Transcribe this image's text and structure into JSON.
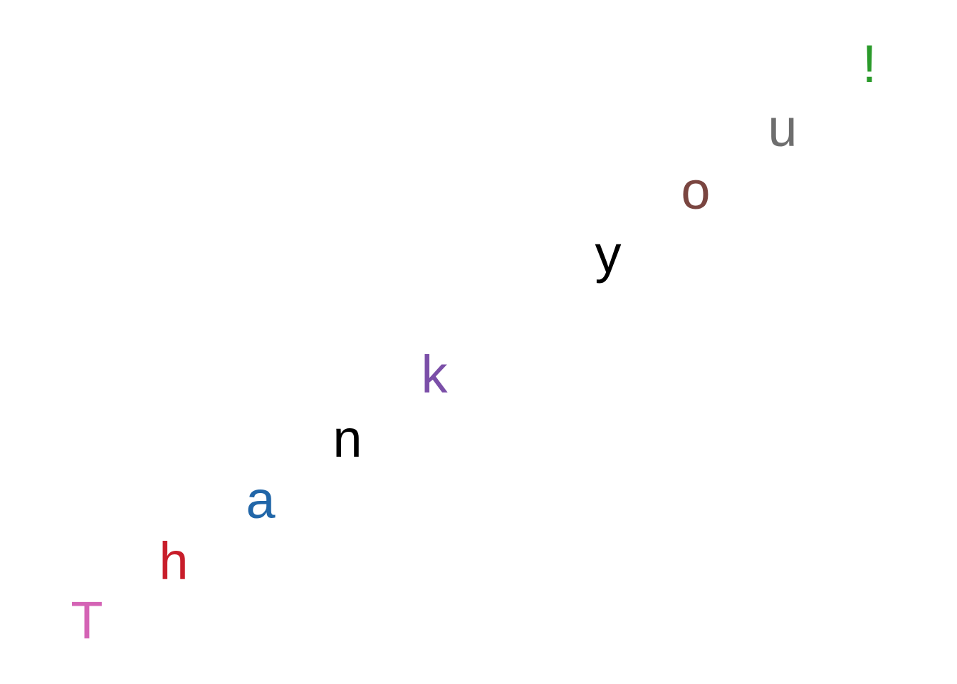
{
  "letters": [
    {
      "char": "T",
      "color": "#d463b5"
    },
    {
      "char": "h",
      "color": "#c81d2a"
    },
    {
      "char": "a",
      "color": "#2166a8"
    },
    {
      "char": "n",
      "color": "#000000"
    },
    {
      "char": "k",
      "color": "#7b4fa8"
    },
    {
      "char": "y",
      "color": "#000000"
    },
    {
      "char": "o",
      "color": "#7a4540"
    },
    {
      "char": "u",
      "color": "#6e6e6e"
    },
    {
      "char": "!",
      "color": "#2a9a2a"
    }
  ]
}
